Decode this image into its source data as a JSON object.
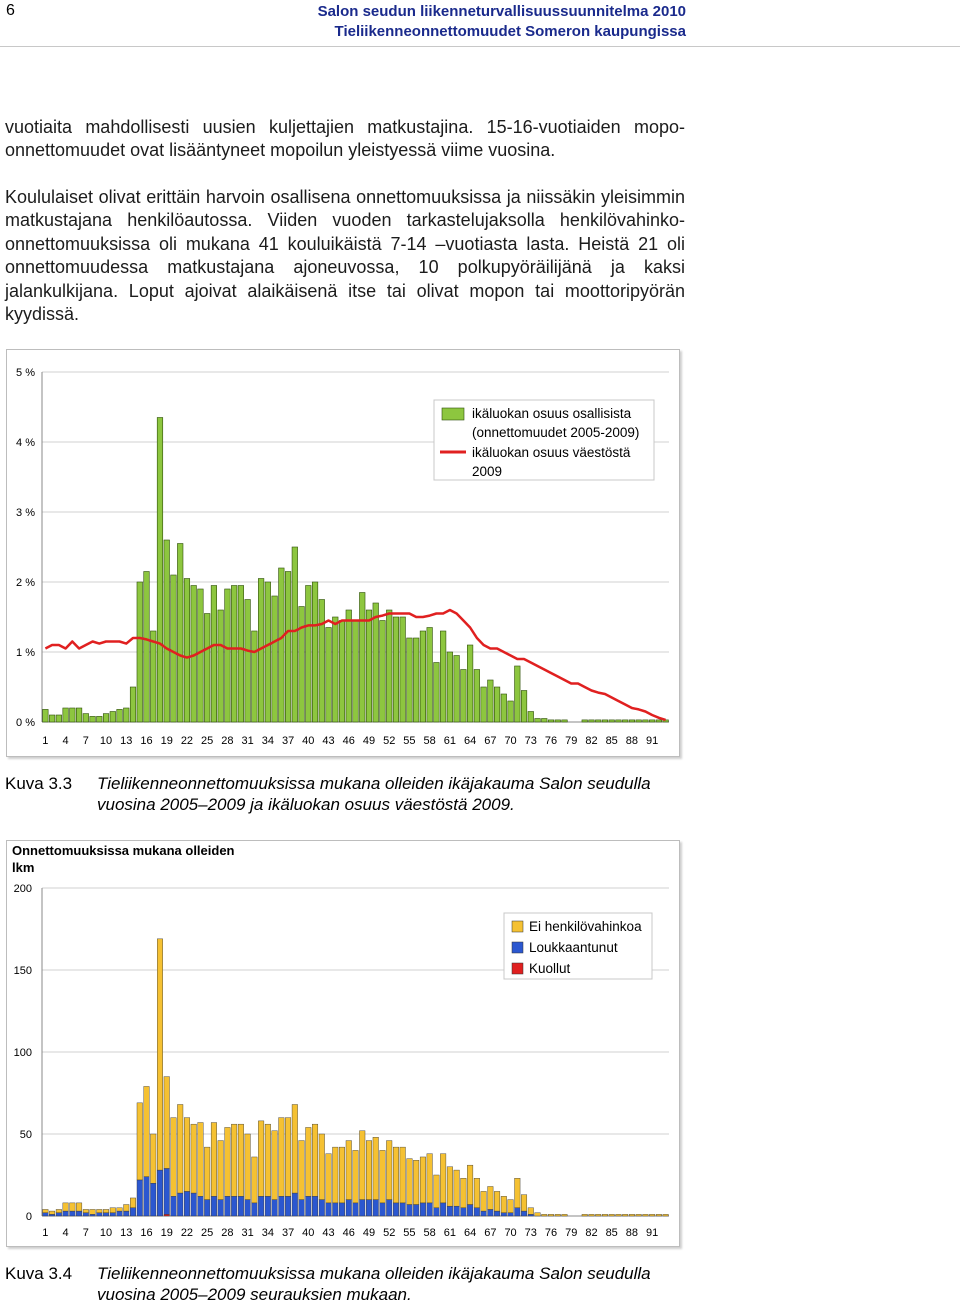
{
  "header": {
    "page_number": "6",
    "title_line1": "Salon seudun liikenneturvallisuussuunnitelma 2010",
    "title_line2": "Tieliikenneonnettomuudet Someron kaupungissa"
  },
  "body": {
    "paragraph1": "vuotiaita mahdollisesti uusien kuljettajien matkustajina. 15-16-vuotiaiden mopo-onnettomuudet ovat lisääntyneet mopoilun yleistyessä viime vuosina.",
    "paragraph2": "Koululaiset olivat erittäin harvoin osallisena onnettomuuksissa ja niissäkin yleisimmin matkustajana henkilöautossa. Viiden vuoden tarkastelujaksolla henkilövahinko-onnettomuuksissa oli mukana 41 kouluikäistä 7-14 –vuotiasta lasta. Heistä 21 oli onnettomuudessa matkustajana ajoneuvossa, 10 polkupyöräilijänä ja kaksi jalankulkijana. Loput ajoivat alaikäisenä itse tai olivat mopon tai moottoripyörän kyydissä."
  },
  "captions": {
    "fig1_label": "Kuva 3.3",
    "fig1_text": "Tieliikenneonnettomuuksissa mukana olleiden ikäjakauma Salon seudulla vuosina 2005–2009 ja ikäluokan osuus väestöstä 2009.",
    "fig2_label": "Kuva 3.4",
    "fig2_text": "Tieliikenneonnettomuuksissa mukana olleiden ikäjakauma Salon seudulla vuosina 2005–2009 seurauksien mukaan."
  },
  "chart_data": [
    {
      "type": "bar",
      "y_tick_labels": [
        "0 %",
        "1 %",
        "2 %",
        "3 %",
        "4 %",
        "5 %"
      ],
      "ylim": [
        0,
        5
      ],
      "x_tick_labels": [
        "1",
        "4",
        "7",
        "10",
        "13",
        "16",
        "19",
        "22",
        "25",
        "28",
        "31",
        "34",
        "37",
        "40",
        "43",
        "46",
        "49",
        "52",
        "55",
        "58",
        "61",
        "64",
        "67",
        "70",
        "73",
        "76",
        "79",
        "82",
        "85",
        "88",
        "91"
      ],
      "x_ages": [
        1,
        2,
        3,
        4,
        5,
        6,
        7,
        8,
        9,
        10,
        11,
        12,
        13,
        14,
        15,
        16,
        17,
        18,
        19,
        20,
        21,
        22,
        23,
        24,
        25,
        26,
        27,
        28,
        29,
        30,
        31,
        32,
        33,
        34,
        35,
        36,
        37,
        38,
        39,
        40,
        41,
        42,
        43,
        44,
        45,
        46,
        47,
        48,
        49,
        50,
        51,
        52,
        53,
        54,
        55,
        56,
        57,
        58,
        59,
        60,
        61,
        62,
        63,
        64,
        65,
        66,
        67,
        68,
        69,
        70,
        71,
        72,
        73,
        74,
        75,
        76,
        77,
        78,
        79,
        80,
        81,
        82,
        83,
        84,
        85,
        86,
        87,
        88,
        89,
        90,
        91,
        92,
        93
      ],
      "grid": "horizontal",
      "legend_position": "top-right",
      "colors": {
        "bars": "#8dc63f",
        "bar_edge": "#2f4f0a",
        "line": "#e02020"
      },
      "series": [
        {
          "name": "ikäluokan osuus osallisista (onnettomuudet 2005-2009)",
          "type": "bar",
          "values": [
            0.18,
            0.1,
            0.1,
            0.2,
            0.2,
            0.2,
            0.12,
            0.08,
            0.08,
            0.12,
            0.15,
            0.18,
            0.2,
            0.5,
            2,
            2.15,
            1.3,
            4.35,
            2.6,
            2.1,
            2.55,
            2.05,
            1.95,
            1.9,
            1.55,
            1.95,
            1.6,
            1.9,
            1.95,
            1.95,
            1.75,
            1.3,
            2.05,
            2.0,
            1.8,
            2.2,
            2.15,
            2.5,
            1.65,
            1.95,
            2.0,
            1.75,
            1.35,
            1.5,
            1.45,
            1.6,
            1.45,
            1.85,
            1.6,
            1.7,
            1.45,
            1.6,
            1.5,
            1.5,
            1.2,
            1.2,
            1.3,
            1.35,
            0.85,
            1.3,
            1.0,
            0.95,
            0.75,
            1.1,
            0.75,
            0.5,
            0.6,
            0.5,
            0.4,
            0.3,
            0.8,
            0.45,
            0.15,
            0.05,
            0.05,
            0.03,
            0.03,
            0.03,
            0,
            0,
            0.03,
            0.03,
            0.03,
            0.03,
            0.03,
            0.03,
            0.03,
            0.03,
            0.03,
            0.03,
            0.03,
            0.03,
            0.03
          ]
        },
        {
          "name": "ikäluokan osuus väestöstä 2009",
          "type": "line",
          "values": [
            1.05,
            1.1,
            1.1,
            1.05,
            1.15,
            1.05,
            1.1,
            1.15,
            1.12,
            1.15,
            1.15,
            1.15,
            1.12,
            1.2,
            1.2,
            1.18,
            1.15,
            1.12,
            1.05,
            1.0,
            0.95,
            0.92,
            0.95,
            1.0,
            1.05,
            1.1,
            1.1,
            1.05,
            1.05,
            1.05,
            1.02,
            1.0,
            1.05,
            1.1,
            1.15,
            1.2,
            1.3,
            1.3,
            1.35,
            1.38,
            1.38,
            1.4,
            1.45,
            1.4,
            1.45,
            1.45,
            1.45,
            1.45,
            1.45,
            1.5,
            1.52,
            1.55,
            1.55,
            1.55,
            1.55,
            1.5,
            1.5,
            1.52,
            1.55,
            1.55,
            1.6,
            1.55,
            1.45,
            1.35,
            1.2,
            1.1,
            1.05,
            1.05,
            1.0,
            0.95,
            0.9,
            0.9,
            0.85,
            0.8,
            0.75,
            0.7,
            0.65,
            0.6,
            0.55,
            0.55,
            0.5,
            0.45,
            0.42,
            0.4,
            0.35,
            0.3,
            0.25,
            0.2,
            0.18,
            0.15,
            0.1,
            0.06,
            0.03
          ]
        }
      ]
    },
    {
      "type": "bar",
      "stacked": true,
      "title": "Onnettomuuksissa mukana olleiden lkm",
      "y_tick_labels": [
        "0",
        "50",
        "100",
        "150",
        "200"
      ],
      "ylim": [
        0,
        200
      ],
      "x_tick_labels": [
        "1",
        "4",
        "7",
        "10",
        "13",
        "16",
        "19",
        "22",
        "25",
        "28",
        "31",
        "34",
        "37",
        "40",
        "43",
        "46",
        "49",
        "52",
        "55",
        "58",
        "61",
        "64",
        "67",
        "70",
        "73",
        "76",
        "79",
        "82",
        "85",
        "88",
        "91"
      ],
      "x_ages": [
        1,
        2,
        3,
        4,
        5,
        6,
        7,
        8,
        9,
        10,
        11,
        12,
        13,
        14,
        15,
        16,
        17,
        18,
        19,
        20,
        21,
        22,
        23,
        24,
        25,
        26,
        27,
        28,
        29,
        30,
        31,
        32,
        33,
        34,
        35,
        36,
        37,
        38,
        39,
        40,
        41,
        42,
        43,
        44,
        45,
        46,
        47,
        48,
        49,
        50,
        51,
        52,
        53,
        54,
        55,
        56,
        57,
        58,
        59,
        60,
        61,
        62,
        63,
        64,
        65,
        66,
        67,
        68,
        69,
        70,
        71,
        72,
        73,
        74,
        75,
        76,
        77,
        78,
        79,
        80,
        81,
        82,
        83,
        84,
        85,
        86,
        87,
        88,
        89,
        90,
        91,
        92,
        93
      ],
      "grid": "horizontal",
      "legend_position": "top-right",
      "series": [
        {
          "name": "Kuollut",
          "color": "#e02020",
          "values": [
            0,
            0,
            0,
            0,
            0,
            0,
            0,
            0,
            0,
            0,
            0,
            0,
            0,
            0,
            0,
            0,
            0,
            0,
            1,
            0,
            0,
            0,
            0,
            0,
            0,
            0,
            0,
            0,
            0,
            0,
            0,
            0,
            0,
            0,
            0,
            0,
            0,
            0,
            0,
            0,
            0,
            0,
            0,
            0,
            0,
            0,
            0,
            0,
            0,
            0,
            0,
            0,
            0,
            0,
            0,
            0,
            0,
            0,
            0,
            0,
            0,
            0,
            0,
            0,
            0,
            0,
            0,
            0,
            0,
            0,
            0,
            0,
            0,
            0,
            0,
            0,
            0,
            0,
            0,
            0,
            0,
            0,
            0,
            0,
            0,
            0,
            0,
            0,
            0,
            0,
            0,
            0,
            0
          ]
        },
        {
          "name": "Loukkaantunut",
          "color": "#2b57d0",
          "values": [
            2,
            1,
            2,
            3,
            3,
            3,
            2,
            1,
            2,
            2,
            2,
            3,
            3,
            5,
            22,
            24,
            20,
            28,
            28,
            12,
            14,
            15,
            14,
            12,
            10,
            12,
            10,
            12,
            12,
            12,
            10,
            8,
            12,
            12,
            10,
            12,
            12,
            14,
            10,
            12,
            12,
            10,
            8,
            8,
            8,
            10,
            8,
            10,
            10,
            10,
            8,
            10,
            8,
            8,
            7,
            7,
            8,
            8,
            5,
            8,
            6,
            6,
            5,
            7,
            5,
            3,
            4,
            3,
            2,
            2,
            5,
            3,
            1,
            0,
            0,
            0,
            0,
            0,
            0,
            0,
            0,
            0,
            0,
            0,
            0,
            0,
            0,
            0,
            0,
            0,
            0,
            0,
            0
          ]
        },
        {
          "name": "Ei henkilövahinkoa",
          "color": "#f5c132",
          "values": [
            2,
            2,
            2,
            5,
            5,
            5,
            2,
            3,
            2,
            2,
            3,
            2,
            4,
            6,
            47,
            55,
            30,
            141,
            56,
            48,
            54,
            45,
            42,
            45,
            32,
            45,
            36,
            42,
            44,
            44,
            40,
            28,
            46,
            44,
            42,
            48,
            48,
            54,
            36,
            42,
            44,
            40,
            30,
            34,
            34,
            36,
            32,
            42,
            36,
            38,
            32,
            36,
            34,
            34,
            28,
            27,
            28,
            30,
            20,
            30,
            24,
            22,
            18,
            24,
            18,
            12,
            14,
            12,
            10,
            8,
            18,
            10,
            4,
            2,
            1,
            1,
            1,
            1,
            0,
            0,
            1,
            1,
            1,
            1,
            1,
            1,
            1,
            1,
            1,
            1,
            1,
            1,
            1
          ]
        }
      ]
    }
  ]
}
